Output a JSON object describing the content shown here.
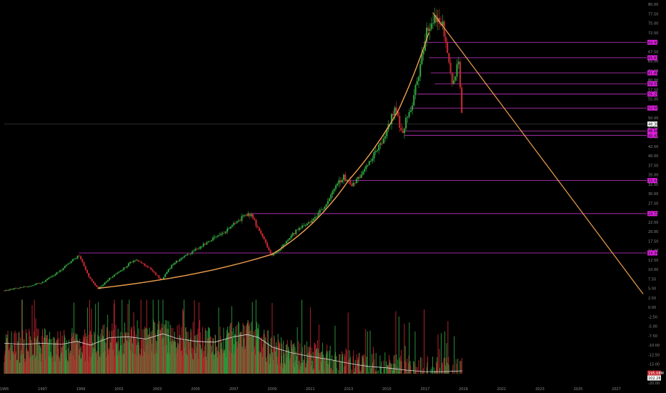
{
  "chart_data": {
    "type": "candlestick",
    "title": "",
    "x_axis": {
      "ticks": [
        "1995",
        "1997",
        "1999",
        "2001",
        "2003",
        "2005",
        "2007",
        "2009",
        "2011",
        "2013",
        "2015",
        "2017",
        "2019",
        "2021",
        "2023",
        "2025",
        "2027"
      ],
      "range": [
        1995.0,
        2028.4
      ]
    },
    "y_axis": {
      "position": "right",
      "range": [
        -20,
        80
      ],
      "ticks": [
        "80.00",
        "77.50",
        "75.00",
        "72.50",
        "70.00",
        "67.50",
        "65.00",
        "62.50",
        "60.00",
        "57.50",
        "55.00",
        "52.50",
        "50.00",
        "47.50",
        "45.00",
        "42.50",
        "40.00",
        "37.50",
        "35.00",
        "32.50",
        "30.00",
        "27.50",
        "25.00",
        "22.50",
        "20.00",
        "17.50",
        "15.00",
        "12.50",
        "10.00",
        "7.50",
        "5.00",
        "2.50",
        "0.00",
        "-2.50",
        "-5.00",
        "-7.50",
        "-10.00",
        "-12.50",
        "-15.00",
        "-17.50",
        "-20.00"
      ]
    },
    "grid": false,
    "colors": {
      "up": "#2e9e3e",
      "down": "#c0272d",
      "trend_curve": "#f0a050",
      "levels": "#c838c8",
      "label_bg": "#e020e0",
      "volume_ma": "#d8d8d8"
    },
    "price_anchors": [
      [
        1995.0,
        4.4
      ],
      [
        1996.0,
        5.3
      ],
      [
        1997.0,
        6.6
      ],
      [
        1997.8,
        9.2
      ],
      [
        1998.3,
        11.3
      ],
      [
        1998.9,
        13.8
      ],
      [
        1999.4,
        8.2
      ],
      [
        1999.9,
        4.9
      ],
      [
        2000.5,
        7.6
      ],
      [
        2001.2,
        10.2
      ],
      [
        2001.8,
        12.6
      ],
      [
        2002.5,
        10.6
      ],
      [
        2003.2,
        7.2
      ],
      [
        2003.8,
        11.4
      ],
      [
        2004.5,
        13.6
      ],
      [
        2005.2,
        15.8
      ],
      [
        2006.0,
        18.4
      ],
      [
        2006.7,
        20.6
      ],
      [
        2007.4,
        23.6
      ],
      [
        2007.9,
        24.6
      ],
      [
        2008.5,
        18.4
      ],
      [
        2009.0,
        13.6
      ],
      [
        2009.6,
        16.6
      ],
      [
        2010.3,
        20.4
      ],
      [
        2011.0,
        22.6
      ],
      [
        2011.6,
        25.8
      ],
      [
        2012.2,
        30.4
      ],
      [
        2012.7,
        34.6
      ],
      [
        2013.2,
        32.4
      ],
      [
        2013.8,
        35.8
      ],
      [
        2014.4,
        41.2
      ],
      [
        2014.9,
        45.5
      ],
      [
        2015.4,
        52.6
      ],
      [
        2015.8,
        46.0
      ],
      [
        2016.3,
        53.8
      ],
      [
        2016.7,
        62.0
      ],
      [
        2017.1,
        73.2
      ],
      [
        2017.5,
        76.8
      ],
      [
        2017.9,
        74.6
      ],
      [
        2018.15,
        67.6
      ],
      [
        2018.45,
        59.4
      ],
      [
        2018.75,
        65.2
      ],
      [
        2018.95,
        48.9
      ]
    ],
    "horizontal_levels": [
      {
        "value": 69.95,
        "label": "69.95",
        "start_x": 2016.9
      },
      {
        "value": 65.87,
        "label": "65.87",
        "start_x": 2017.2
      },
      {
        "value": 61.89,
        "label": "61.89",
        "start_x": 2017.3
      },
      {
        "value": 59.01,
        "label": "59.01",
        "start_x": 2017.5
      },
      {
        "value": 56.29,
        "label": "56.29",
        "start_x": 2016.6
      },
      {
        "value": 52.6,
        "label": "52.60",
        "start_x": 2016.2
      },
      {
        "value": 48.38,
        "label": "48.38",
        "start_x": 1995.0
      },
      {
        "value": 46.56,
        "label": "46.56",
        "start_x": 2015.9
      },
      {
        "value": 45.41,
        "label": "45.41",
        "start_x": 2015.9
      },
      {
        "value": 33.47,
        "label": "33.47",
        "start_x": 2012.8
      },
      {
        "value": 24.73,
        "label": "24.73",
        "start_x": 2007.9
      },
      {
        "value": 14.34,
        "label": "14.34",
        "start_x": 1998.9
      }
    ],
    "current_price": {
      "value": 48.38,
      "label": "48.38"
    },
    "trend_lines": [
      {
        "type": "parabolic_curve",
        "points": [
          [
            1999.9,
            5.0
          ],
          [
            2009.0,
            14.0
          ],
          [
            2013.0,
            33.5
          ],
          [
            2015.6,
            52.0
          ],
          [
            2017.2,
            72.5
          ]
        ]
      },
      {
        "type": "line",
        "points": [
          [
            2017.4,
            77.8
          ],
          [
            2028.4,
            3.5
          ]
        ]
      }
    ],
    "volume": {
      "axis_labels": [
        "195.08M",
        "102.26M"
      ],
      "ma_anchors": [
        [
          1995.0,
          -9.5
        ],
        [
          1996.0,
          -9.8
        ],
        [
          1997.0,
          -9.5
        ],
        [
          1998.0,
          -9.8
        ],
        [
          1998.8,
          -9.0
        ],
        [
          1999.5,
          -10.0
        ],
        [
          2000.5,
          -8.0
        ],
        [
          2001.5,
          -7.8
        ],
        [
          2002.4,
          -8.4
        ],
        [
          2003.3,
          -7.0
        ],
        [
          2004.0,
          -8.2
        ],
        [
          2005.0,
          -9.0
        ],
        [
          2006.0,
          -9.2
        ],
        [
          2007.0,
          -7.8
        ],
        [
          2007.7,
          -7.2
        ],
        [
          2008.3,
          -8.0
        ],
        [
          2009.0,
          -10.5
        ],
        [
          2010.0,
          -12.0
        ],
        [
          2011.0,
          -13.0
        ],
        [
          2012.0,
          -13.8
        ],
        [
          2013.0,
          -14.8
        ],
        [
          2014.0,
          -15.6
        ],
        [
          2015.0,
          -16.0
        ],
        [
          2016.0,
          -16.6
        ],
        [
          2017.0,
          -17.0
        ],
        [
          2018.0,
          -17.0
        ],
        [
          2018.95,
          -16.8
        ]
      ]
    }
  }
}
